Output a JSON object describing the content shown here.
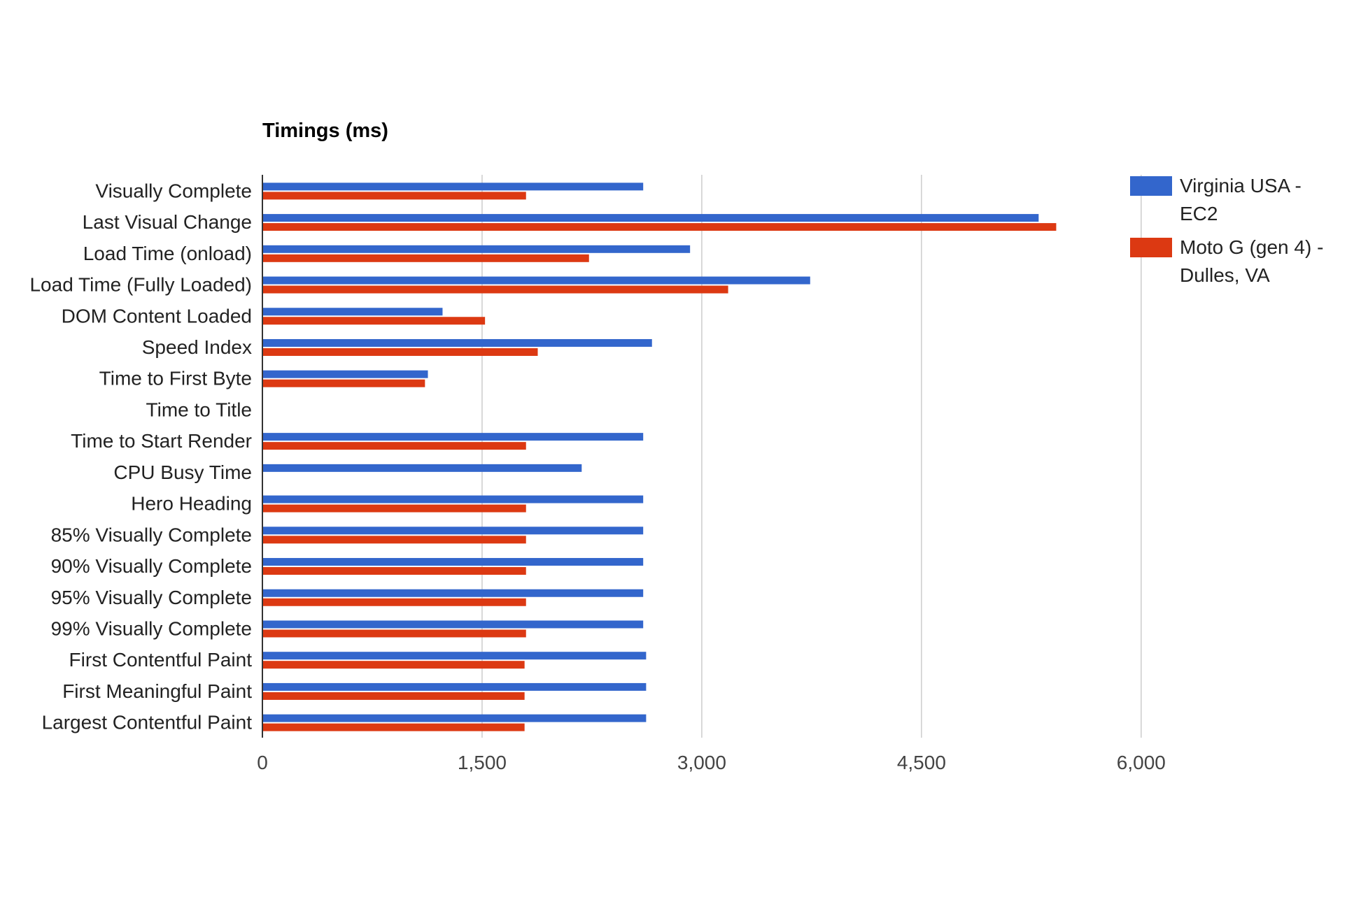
{
  "chart_data": {
    "type": "bar",
    "orientation": "horizontal",
    "title": "Timings (ms)",
    "xlabel": "",
    "ylabel": "",
    "xlim": [
      0,
      7200
    ],
    "x_ticks": [
      0,
      1500,
      3000,
      4500,
      6000
    ],
    "x_tick_labels": [
      "0",
      "1,500",
      "3,000",
      "4,500",
      "6,000"
    ],
    "grid": true,
    "legend_position": "right",
    "categories": [
      "Visually Complete",
      "Last Visual Change",
      "Load Time (onload)",
      "Load Time (Fully Loaded)",
      "DOM Content Loaded",
      "Speed Index",
      "Time to First Byte",
      "Time to Title",
      "Time to Start Render",
      "CPU Busy Time",
      "Hero Heading",
      "85% Visually Complete",
      "90% Visually Complete",
      "95% Visually Complete",
      "99% Visually Complete",
      "First Contentful Paint",
      "First Meaningful Paint",
      "Largest Contentful Paint"
    ],
    "series": [
      {
        "name": "Virginia USA - EC2",
        "legend_lines": [
          "Virginia USA -",
          "EC2"
        ],
        "color": "#3366cc",
        "values": [
          2600,
          5300,
          2920,
          3740,
          1230,
          2660,
          1130,
          0,
          2600,
          2180,
          2600,
          2600,
          2600,
          2600,
          2600,
          2620,
          2620,
          2620
        ]
      },
      {
        "name": "Moto G (gen 4) - Dulles, VA",
        "legend_lines": [
          "Moto G (gen 4) -",
          "Dulles, VA"
        ],
        "color": "#dc3912",
        "values": [
          1800,
          5420,
          2230,
          3180,
          1520,
          1880,
          1110,
          0,
          1800,
          0,
          1800,
          1800,
          1800,
          1800,
          1800,
          1790,
          1790,
          1790
        ]
      }
    ]
  }
}
